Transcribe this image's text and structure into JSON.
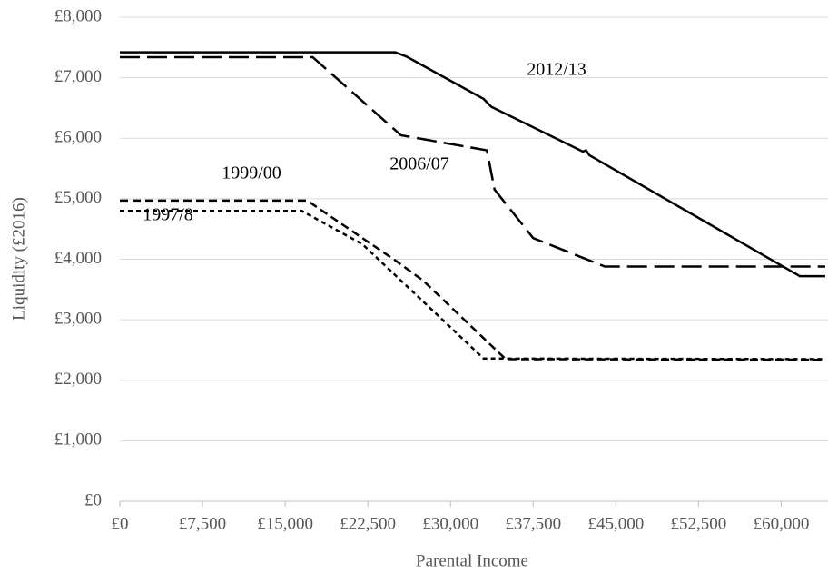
{
  "chart_data": {
    "type": "line",
    "x_label": "Parental Income",
    "y_label": "Liquidity (£2016)",
    "xlim": [
      0,
      64000
    ],
    "ylim": [
      0,
      8000
    ],
    "xticks": [
      {
        "value": 0,
        "label": "£0"
      },
      {
        "value": 7500,
        "label": "£7,500"
      },
      {
        "value": 15000,
        "label": "£15,000"
      },
      {
        "value": 22500,
        "label": "£22,500"
      },
      {
        "value": 30000,
        "label": "£30,000"
      },
      {
        "value": 37500,
        "label": "£37,500"
      },
      {
        "value": 45000,
        "label": "£45,000"
      },
      {
        "value": 52500,
        "label": "£52,500"
      },
      {
        "value": 60000,
        "label": "£60,000"
      }
    ],
    "yticks": [
      {
        "value": 0,
        "label": "£0"
      },
      {
        "value": 1000,
        "label": "£1,000"
      },
      {
        "value": 2000,
        "label": "£2,000"
      },
      {
        "value": 3000,
        "label": "£3,000"
      },
      {
        "value": 4000,
        "label": "£4,000"
      },
      {
        "value": 5000,
        "label": "£5,000"
      },
      {
        "value": 6000,
        "label": "£6,000"
      },
      {
        "value": 7000,
        "label": "£7,000"
      },
      {
        "value": 8000,
        "label": "£8,000"
      }
    ],
    "grid": true,
    "series": [
      {
        "name": "2012/13",
        "color": "#000000",
        "dash": "solid",
        "x": [
          0,
          25000,
          26000,
          33000,
          33700,
          42000,
          42300,
          42600,
          61700,
          64000
        ],
        "values": [
          7420,
          7420,
          7350,
          6650,
          6520,
          5780,
          5800,
          5720,
          3720,
          3720
        ]
      },
      {
        "name": "2006/07",
        "color": "#000000",
        "dash": "long",
        "x": [
          0,
          17500,
          25500,
          33300,
          34000,
          37500,
          44000,
          64000
        ],
        "values": [
          7340,
          7340,
          6050,
          5800,
          5150,
          4350,
          3880,
          3880
        ]
      },
      {
        "name": "1999/00",
        "color": "#000000",
        "dash": "medium",
        "x": [
          0,
          17000,
          25000,
          27500,
          35000,
          64000
        ],
        "values": [
          4970,
          4970,
          3980,
          3650,
          2350,
          2340
        ]
      },
      {
        "name": "1997/8",
        "color": "#000000",
        "dash": "short",
        "x": [
          0,
          16500,
          22000,
          33000,
          64000
        ],
        "values": [
          4800,
          4800,
          4250,
          2360,
          2350
        ]
      }
    ]
  }
}
